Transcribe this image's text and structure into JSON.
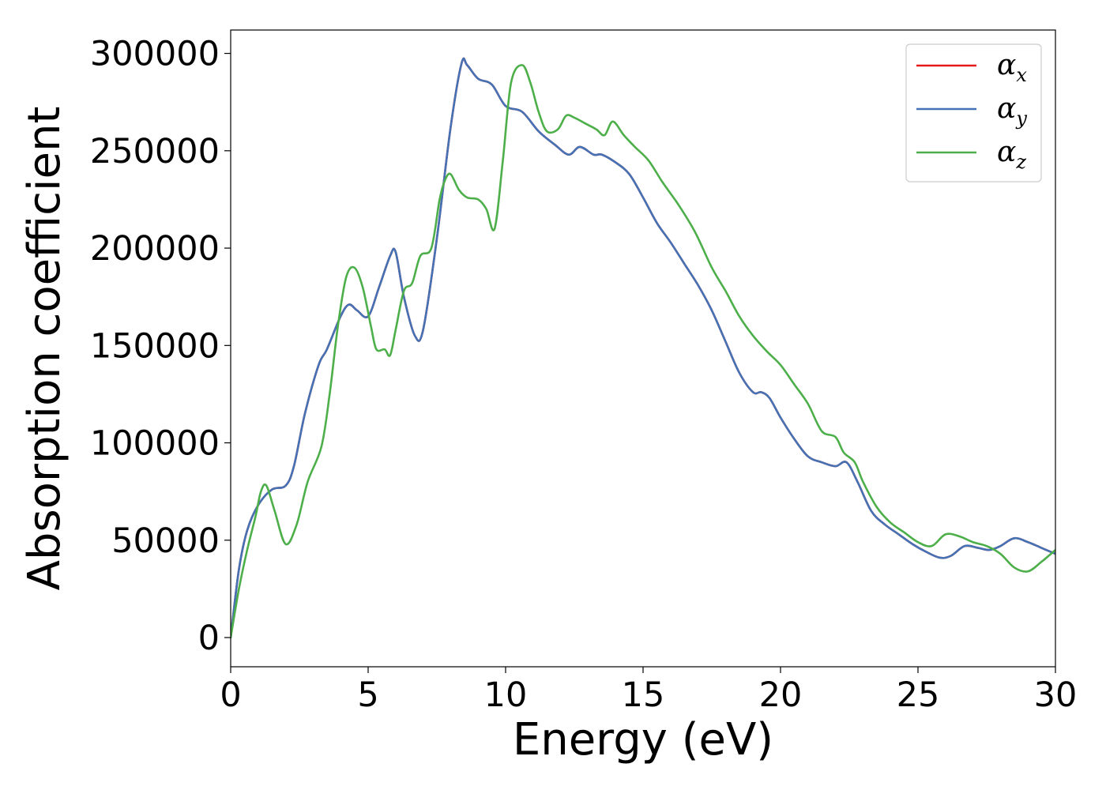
{
  "chart_data": {
    "type": "line",
    "title": "",
    "xlabel": "Energy (eV)",
    "ylabel": "Absorption coefficient",
    "xlim": [
      0,
      30
    ],
    "ylim": [
      -15000,
      312000
    ],
    "xticks": [
      0,
      5,
      10,
      15,
      20,
      25,
      30
    ],
    "yticks": [
      0,
      50000,
      100000,
      150000,
      200000,
      250000,
      300000
    ],
    "grid": false,
    "legend_position": "top-right",
    "series": [
      {
        "name": "α_x",
        "symbol": "α",
        "subscript": "x",
        "color": "#e41a1c",
        "x": [
          0,
          0.3,
          0.6,
          1.0,
          1.5,
          2.0,
          2.3,
          2.7,
          3.2,
          3.5,
          4.0,
          4.3,
          4.6,
          5.0,
          5.4,
          5.8,
          6.0,
          6.3,
          6.7,
          7.0,
          7.5,
          8.0,
          8.4,
          8.6,
          9.0,
          9.5,
          10.0,
          10.6,
          11.2,
          11.8,
          12.3,
          12.7,
          13.2,
          13.5,
          14.0,
          14.5,
          15.0,
          15.5,
          16.0,
          16.5,
          17.0,
          17.5,
          18.0,
          18.5,
          19.0,
          19.3,
          19.6,
          20.0,
          20.5,
          21.0,
          21.5,
          22.0,
          22.4,
          22.8,
          23.3,
          23.8,
          24.3,
          24.8,
          25.3,
          25.8,
          26.2,
          26.7,
          27.2,
          27.6,
          28.0,
          28.5,
          29.0,
          29.5,
          30.0
        ],
        "y": [
          0,
          35000,
          55000,
          68000,
          76000,
          78000,
          88000,
          115000,
          140000,
          148000,
          165000,
          171000,
          168000,
          165000,
          180000,
          196000,
          198000,
          175000,
          155000,
          158000,
          205000,
          262000,
          295000,
          294000,
          287000,
          284000,
          273000,
          270000,
          260000,
          253000,
          248000,
          252000,
          248000,
          248000,
          244000,
          238000,
          226000,
          213000,
          203000,
          192000,
          181000,
          168000,
          152000,
          136000,
          126000,
          126000,
          123000,
          113000,
          102000,
          93000,
          90000,
          88000,
          90000,
          80000,
          65000,
          58000,
          53000,
          48000,
          44000,
          41000,
          42000,
          47000,
          46000,
          45000,
          47000,
          51000,
          49000,
          46000,
          43000
        ]
      },
      {
        "name": "α_y",
        "symbol": "α",
        "subscript": "y",
        "color": "#4472b4",
        "x": [
          0,
          0.3,
          0.6,
          1.0,
          1.5,
          2.0,
          2.3,
          2.7,
          3.2,
          3.5,
          4.0,
          4.3,
          4.6,
          5.0,
          5.4,
          5.8,
          6.0,
          6.3,
          6.7,
          7.0,
          7.5,
          8.0,
          8.4,
          8.6,
          9.0,
          9.5,
          10.0,
          10.6,
          11.2,
          11.8,
          12.3,
          12.7,
          13.2,
          13.5,
          14.0,
          14.5,
          15.0,
          15.5,
          16.0,
          16.5,
          17.0,
          17.5,
          18.0,
          18.5,
          19.0,
          19.3,
          19.6,
          20.0,
          20.5,
          21.0,
          21.5,
          22.0,
          22.4,
          22.8,
          23.3,
          23.8,
          24.3,
          24.8,
          25.3,
          25.8,
          26.2,
          26.7,
          27.2,
          27.6,
          28.0,
          28.5,
          29.0,
          29.5,
          30.0
        ],
        "y": [
          0,
          35000,
          55000,
          68000,
          76000,
          78000,
          88000,
          115000,
          140000,
          148000,
          165000,
          171000,
          168000,
          165000,
          180000,
          196000,
          198000,
          175000,
          155000,
          158000,
          205000,
          262000,
          295000,
          294000,
          287000,
          284000,
          273000,
          270000,
          260000,
          253000,
          248000,
          252000,
          248000,
          248000,
          244000,
          238000,
          226000,
          213000,
          203000,
          192000,
          181000,
          168000,
          152000,
          136000,
          126000,
          126000,
          123000,
          113000,
          102000,
          93000,
          90000,
          88000,
          90000,
          80000,
          65000,
          58000,
          53000,
          48000,
          44000,
          41000,
          42000,
          47000,
          46000,
          45000,
          47000,
          51000,
          49000,
          46000,
          43000
        ]
      },
      {
        "name": "α_z",
        "symbol": "α",
        "subscript": "z",
        "color": "#4daf4a",
        "x": [
          0,
          0.3,
          0.6,
          0.9,
          1.1,
          1.3,
          1.6,
          2.0,
          2.4,
          2.8,
          3.3,
          3.6,
          3.9,
          4.2,
          4.5,
          4.8,
          5.1,
          5.3,
          5.6,
          5.8,
          6.0,
          6.3,
          6.6,
          6.9,
          7.3,
          7.6,
          7.8,
          8.0,
          8.3,
          8.6,
          9.0,
          9.3,
          9.6,
          9.9,
          10.2,
          10.6,
          10.9,
          11.2,
          11.5,
          11.9,
          12.2,
          12.5,
          12.9,
          13.3,
          13.6,
          13.9,
          14.3,
          14.7,
          15.2,
          15.7,
          16.3,
          16.9,
          17.5,
          18.0,
          18.5,
          19.0,
          19.5,
          20.0,
          20.5,
          21.0,
          21.5,
          22.0,
          22.3,
          22.7,
          23.0,
          23.5,
          24.0,
          24.5,
          25.0,
          25.5,
          26.0,
          26.5,
          27.0,
          27.5,
          28.0,
          28.5,
          29.0,
          29.5,
          30.0
        ],
        "y": [
          0,
          25000,
          45000,
          62000,
          75000,
          78000,
          65000,
          48000,
          58000,
          80000,
          98000,
          125000,
          160000,
          185000,
          190000,
          180000,
          160000,
          148000,
          148000,
          145000,
          158000,
          178000,
          182000,
          196000,
          200000,
          225000,
          235000,
          238000,
          230000,
          226000,
          225000,
          220000,
          210000,
          245000,
          285000,
          294000,
          285000,
          270000,
          260000,
          261000,
          268000,
          267000,
          264000,
          261000,
          258000,
          265000,
          258000,
          252000,
          245000,
          234000,
          222000,
          208000,
          190000,
          178000,
          165000,
          155000,
          147000,
          140000,
          130000,
          120000,
          106000,
          103000,
          95000,
          90000,
          80000,
          67000,
          59000,
          54000,
          49000,
          47000,
          53000,
          52000,
          49000,
          47000,
          43000,
          36000,
          34000,
          39000,
          45000
        ]
      }
    ]
  }
}
